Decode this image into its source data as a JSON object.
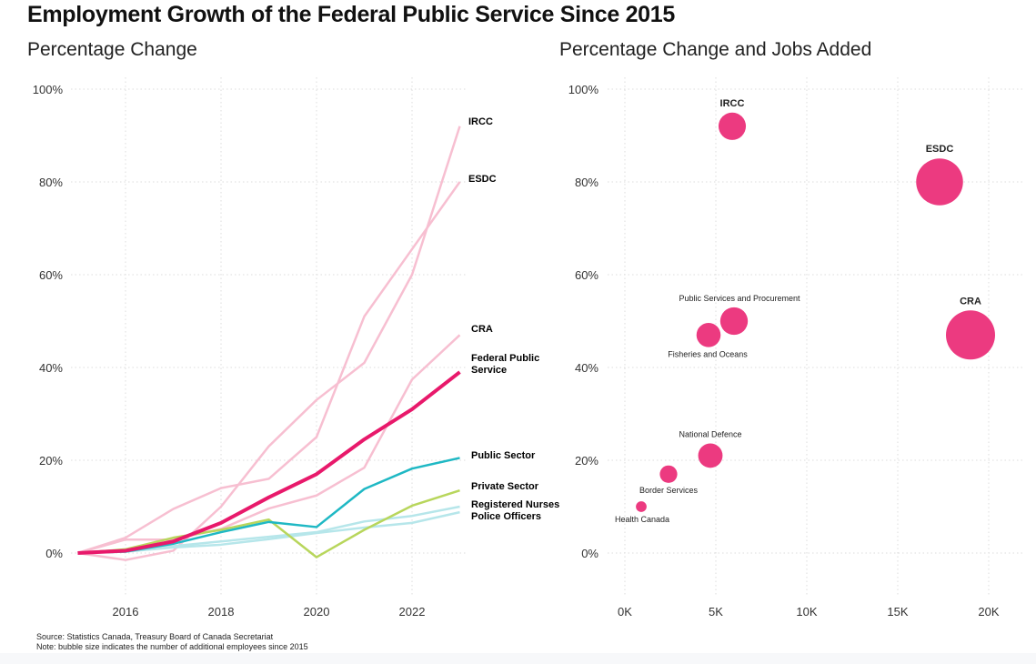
{
  "title": "Employment Growth of the Federal Public Service Since 2015",
  "chart_data": [
    {
      "type": "line",
      "title": "Percentage Change",
      "x": [
        2015,
        2016,
        2017,
        2018,
        2019,
        2020,
        2021,
        2022,
        2023
      ],
      "xticks": [
        "2016",
        "2018",
        "2020",
        "2022"
      ],
      "yticks": [
        "0%",
        "20%",
        "40%",
        "60%",
        "80%",
        "100%"
      ],
      "ylim": [
        -10,
        100
      ],
      "grid": true,
      "series": [
        {
          "name": "IRCC",
          "color": "#f7bfd1",
          "values": [
            0,
            -1.5,
            0.5,
            10,
            23,
            33,
            41,
            60,
            92
          ]
        },
        {
          "name": "ESDC",
          "color": "#f7bfd1",
          "values": [
            0,
            3.3,
            9.5,
            14,
            16,
            25,
            51,
            65.5,
            80
          ]
        },
        {
          "name": "CRA",
          "color": "#f7bfd1",
          "values": [
            0,
            2.9,
            2.9,
            5.2,
            9.6,
            12.4,
            18.4,
            37.4,
            47
          ]
        },
        {
          "name": "Registered Nurses",
          "color": "#b6e6ea",
          "values": [
            0,
            0.5,
            1.5,
            2.5,
            3.5,
            4.5,
            6.8,
            8,
            10
          ]
        },
        {
          "name": "Police Officers",
          "color": "#b6e6ea",
          "values": [
            0,
            0.3,
            1.2,
            1.8,
            3,
            4.3,
            5.5,
            6.5,
            8.8
          ]
        },
        {
          "name": "Private Sector",
          "color": "#b8d65c",
          "values": [
            0,
            0.8,
            3.3,
            5,
            7.2,
            -0.9,
            5,
            10.2,
            13.5
          ]
        },
        {
          "name": "Public Sector",
          "color": "#1fb8c4",
          "values": [
            0,
            0.3,
            2,
            4.5,
            6.7,
            5.6,
            13.8,
            18.2,
            20.5
          ]
        },
        {
          "name": "Federal Public Service",
          "color": "#e8196b",
          "values": [
            0,
            0.5,
            2.5,
            6.5,
            12,
            17,
            24.5,
            31,
            39
          ]
        }
      ]
    },
    {
      "type": "scatter",
      "title": "Percentage Change and Jobs Added",
      "xticks": [
        "0K",
        "5K",
        "10K",
        "15K",
        "20K"
      ],
      "yticks": [
        "0%",
        "20%",
        "40%",
        "60%",
        "80%",
        "100%"
      ],
      "xlim": [
        -1500,
        21500
      ],
      "ylim": [
        -10,
        100
      ],
      "grid": true,
      "color": "#ec3a80",
      "points": [
        {
          "name": "IRCC",
          "jobs": 5900,
          "pct": 92
        },
        {
          "name": "ESDC",
          "jobs": 17300,
          "pct": 80
        },
        {
          "name": "CRA",
          "jobs": 19000,
          "pct": 47
        },
        {
          "name": "Public Services and Procurement",
          "jobs": 6000,
          "pct": 50
        },
        {
          "name": "Fisheries and Oceans",
          "jobs": 4600,
          "pct": 47
        },
        {
          "name": "National Defence",
          "jobs": 4700,
          "pct": 21
        },
        {
          "name": "Border Services",
          "jobs": 2400,
          "pct": 17
        },
        {
          "name": "Health Canada",
          "jobs": 900,
          "pct": 10
        }
      ]
    }
  ],
  "footer": {
    "source": "Source: Statistics Canada, Treasury Board of Canada Secretariat",
    "note": "Note: bubble size indicates the number of additional employees since 2015"
  }
}
